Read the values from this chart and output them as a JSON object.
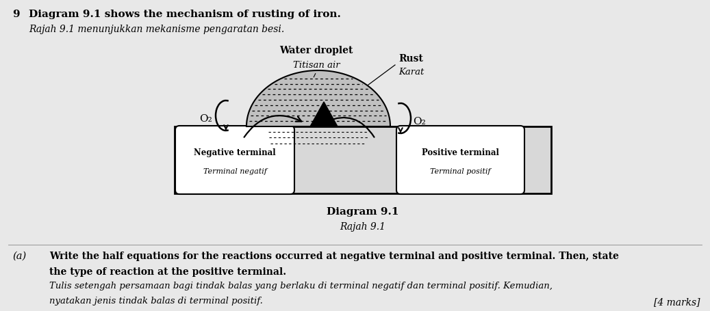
{
  "bg_color": "#e8e8e8",
  "fig_width": 10.37,
  "fig_height": 4.56,
  "title_num": "9",
  "title_en": "Diagram 9.1 shows the mechanism of rusting of iron.",
  "title_my": "Rajah 9.1 menunjukkan mekanisme pengaratan besi.",
  "diagram_label_en": "Diagram 9.1",
  "diagram_label_my": "Rajah 9.1",
  "water_droplet_en": "Water droplet",
  "water_droplet_my": "Titisan air",
  "rust_en": "Rust",
  "rust_my": "Karat",
  "neg_terminal_en": "Negative terminal",
  "neg_terminal_my": "Terminal negatif",
  "pos_terminal_en": "Positive terminal",
  "pos_terminal_my": "Terminal positif",
  "o2_label": "O₂",
  "question_a_italic_a": "(a)",
  "question_a_en1": "Write the half equations for the reactions occurred at negative terminal and positive terminal. Then, state",
  "question_a_en2": "the type of reaction at the positive terminal.",
  "question_a_my1": "Tulis setengah persamaan bagi tindak balas yang berlaku di terminal negatif dan terminal positif. Kemudian,",
  "question_a_my2": "nyatakan jenis tindak balas di terminal positif.",
  "marks": "[4 marks]"
}
